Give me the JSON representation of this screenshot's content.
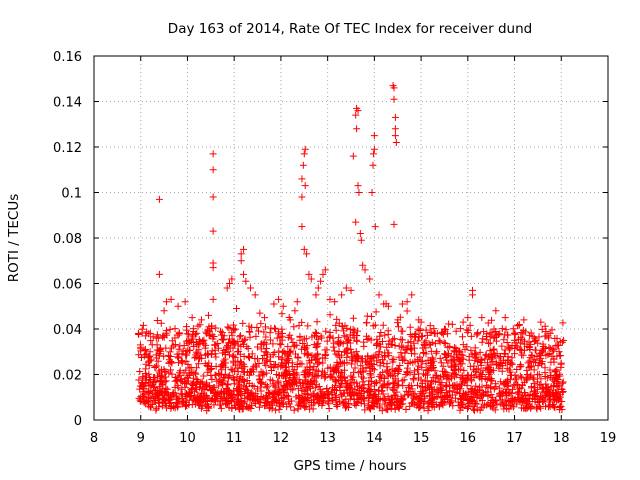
{
  "chart_data": {
    "type": "scatter",
    "title": "Day 163 of 2014, Rate Of TEC Index for receiver dund",
    "xlabel": "GPS time / hours",
    "ylabel": "ROTI / TECUs",
    "xlim": [
      8,
      19
    ],
    "ylim": [
      0,
      0.16
    ],
    "x_ticks": [
      8,
      9,
      10,
      11,
      12,
      13,
      14,
      15,
      16,
      17,
      18,
      19
    ],
    "y_ticks": [
      0,
      0.02,
      0.04,
      0.06,
      0.08,
      0.1,
      0.12,
      0.14,
      0.16
    ],
    "x_tick_labels": [
      "8",
      "9",
      "10",
      "11",
      "12",
      "13",
      "14",
      "15",
      "16",
      "17",
      "18",
      "19"
    ],
    "y_tick_labels": [
      "0",
      "0.02",
      "0.04",
      "0.06",
      "0.08",
      "0.1",
      "0.12",
      "0.14",
      "0.16"
    ],
    "grid": true,
    "marker": "+",
    "marker_color": "#ff0000",
    "series": [
      {
        "name": "ROTI",
        "points": [
          [
            8.95,
            0.038
          ],
          [
            9.0,
            0.032
          ],
          [
            9.1,
            0.031
          ],
          [
            9.2,
            0.03
          ],
          [
            9.35,
            0.033
          ],
          [
            9.4,
            0.097
          ],
          [
            9.4,
            0.064
          ],
          [
            9.5,
            0.048
          ],
          [
            9.55,
            0.052
          ],
          [
            9.65,
            0.053
          ],
          [
            9.8,
            0.05
          ],
          [
            9.95,
            0.052
          ],
          [
            10.1,
            0.045
          ],
          [
            10.3,
            0.044
          ],
          [
            10.45,
            0.046
          ],
          [
            10.55,
            0.117
          ],
          [
            10.55,
            0.11
          ],
          [
            10.55,
            0.098
          ],
          [
            10.55,
            0.083
          ],
          [
            10.55,
            0.069
          ],
          [
            10.55,
            0.067
          ],
          [
            10.55,
            0.053
          ],
          [
            10.85,
            0.058
          ],
          [
            10.9,
            0.06
          ],
          [
            10.95,
            0.062
          ],
          [
            11.05,
            0.049
          ],
          [
            11.15,
            0.07
          ],
          [
            11.15,
            0.073
          ],
          [
            11.2,
            0.075
          ],
          [
            11.2,
            0.064
          ],
          [
            11.25,
            0.061
          ],
          [
            11.35,
            0.058
          ],
          [
            11.45,
            0.055
          ],
          [
            11.55,
            0.047
          ],
          [
            11.65,
            0.045
          ],
          [
            11.85,
            0.051
          ],
          [
            11.95,
            0.053
          ],
          [
            12.05,
            0.05
          ],
          [
            12.2,
            0.044
          ],
          [
            12.3,
            0.048
          ],
          [
            12.35,
            0.052
          ],
          [
            12.45,
            0.098
          ],
          [
            12.45,
            0.106
          ],
          [
            12.48,
            0.112
          ],
          [
            12.5,
            0.117
          ],
          [
            12.52,
            0.119
          ],
          [
            12.52,
            0.103
          ],
          [
            12.45,
            0.085
          ],
          [
            12.5,
            0.075
          ],
          [
            12.55,
            0.073
          ],
          [
            12.6,
            0.064
          ],
          [
            12.65,
            0.062
          ],
          [
            12.75,
            0.055
          ],
          [
            12.8,
            0.058
          ],
          [
            12.85,
            0.061
          ],
          [
            12.9,
            0.064
          ],
          [
            12.95,
            0.066
          ],
          [
            13.05,
            0.053
          ],
          [
            13.15,
            0.052
          ],
          [
            13.3,
            0.055
          ],
          [
            13.4,
            0.058
          ],
          [
            13.5,
            0.057
          ],
          [
            13.55,
            0.116
          ],
          [
            13.6,
            0.134
          ],
          [
            13.62,
            0.137
          ],
          [
            13.65,
            0.136
          ],
          [
            13.62,
            0.128
          ],
          [
            13.6,
            0.087
          ],
          [
            13.65,
            0.103
          ],
          [
            13.67,
            0.1
          ],
          [
            13.7,
            0.082
          ],
          [
            13.72,
            0.079
          ],
          [
            13.75,
            0.068
          ],
          [
            13.8,
            0.066
          ],
          [
            13.9,
            0.062
          ],
          [
            13.95,
            0.1
          ],
          [
            13.97,
            0.112
          ],
          [
            13.98,
            0.117
          ],
          [
            14.0,
            0.119
          ],
          [
            14.0,
            0.125
          ],
          [
            14.02,
            0.085
          ],
          [
            14.1,
            0.055
          ],
          [
            14.2,
            0.051
          ],
          [
            14.3,
            0.05
          ],
          [
            14.4,
            0.147
          ],
          [
            14.42,
            0.146
          ],
          [
            14.42,
            0.141
          ],
          [
            14.45,
            0.133
          ],
          [
            14.45,
            0.128
          ],
          [
            14.45,
            0.125
          ],
          [
            14.47,
            0.122
          ],
          [
            14.42,
            0.086
          ],
          [
            14.6,
            0.051
          ],
          [
            14.7,
            0.052
          ],
          [
            14.8,
            0.055
          ],
          [
            14.95,
            0.044
          ],
          [
            15.0,
            0.043
          ],
          [
            15.3,
            0.038
          ],
          [
            15.5,
            0.04
          ],
          [
            15.75,
            0.039
          ],
          [
            15.9,
            0.043
          ],
          [
            16.0,
            0.045
          ],
          [
            16.1,
            0.057
          ],
          [
            16.1,
            0.055
          ],
          [
            16.3,
            0.045
          ],
          [
            16.6,
            0.048
          ],
          [
            16.8,
            0.045
          ],
          [
            17.0,
            0.038
          ],
          [
            17.1,
            0.042
          ],
          [
            17.2,
            0.044
          ],
          [
            17.45,
            0.035
          ],
          [
            17.6,
            0.03
          ],
          [
            17.8,
            0.028
          ],
          [
            18.0,
            0.025
          ]
        ]
      }
    ]
  }
}
